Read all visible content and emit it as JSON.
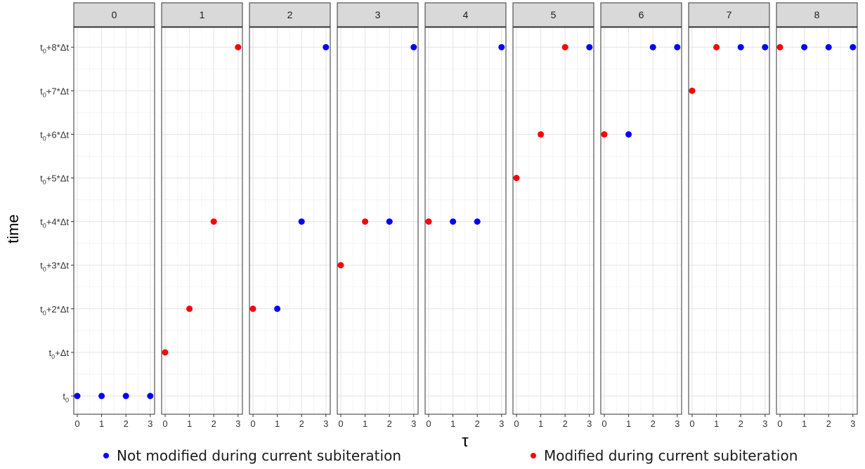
{
  "chart_data": {
    "type": "scatter",
    "xlabel": "τ",
    "ylabel": "time",
    "x_ticks": [
      0,
      1,
      2,
      3
    ],
    "xlim": [
      0,
      3
    ],
    "y_ticks": [
      {
        "value": 0,
        "base": "t",
        "sub": "0",
        "suffix": ""
      },
      {
        "value": 1,
        "base": "t",
        "sub": "0",
        "suffix": "+Δt"
      },
      {
        "value": 2,
        "base": "t",
        "sub": "0",
        "suffix": "+2*Δt"
      },
      {
        "value": 3,
        "base": "t",
        "sub": "0",
        "suffix": "+3*Δt"
      },
      {
        "value": 4,
        "base": "t",
        "sub": "0",
        "suffix": "+4*Δt"
      },
      {
        "value": 5,
        "base": "t",
        "sub": "0",
        "suffix": "+5*Δt"
      },
      {
        "value": 6,
        "base": "t",
        "sub": "0",
        "suffix": "+6*Δt"
      },
      {
        "value": 7,
        "base": "t",
        "sub": "0",
        "suffix": "+7*Δt"
      },
      {
        "value": 8,
        "base": "t",
        "sub": "0",
        "suffix": "+8*Δt"
      }
    ],
    "ylim": [
      0,
      8
    ],
    "grid": true,
    "legend_position": "bottom",
    "series": [
      {
        "key": "not_modified",
        "name": "Not modified during current subiteration",
        "color": "#0000ff"
      },
      {
        "key": "modified",
        "name": "Modified during current subiteration",
        "color": "#ff0000"
      }
    ],
    "panels": [
      {
        "label": "0",
        "points": [
          {
            "x": 0,
            "y": 0,
            "s": "not_modified"
          },
          {
            "x": 1,
            "y": 0,
            "s": "not_modified"
          },
          {
            "x": 2,
            "y": 0,
            "s": "not_modified"
          },
          {
            "x": 3,
            "y": 0,
            "s": "not_modified"
          }
        ]
      },
      {
        "label": "1",
        "points": [
          {
            "x": 0,
            "y": 1,
            "s": "modified"
          },
          {
            "x": 1,
            "y": 2,
            "s": "modified"
          },
          {
            "x": 2,
            "y": 4,
            "s": "modified"
          },
          {
            "x": 3,
            "y": 8,
            "s": "modified"
          }
        ]
      },
      {
        "label": "2",
        "points": [
          {
            "x": 0,
            "y": 2,
            "s": "modified"
          },
          {
            "x": 1,
            "y": 2,
            "s": "not_modified"
          },
          {
            "x": 2,
            "y": 4,
            "s": "not_modified"
          },
          {
            "x": 3,
            "y": 8,
            "s": "not_modified"
          }
        ]
      },
      {
        "label": "3",
        "points": [
          {
            "x": 0,
            "y": 3,
            "s": "modified"
          },
          {
            "x": 1,
            "y": 4,
            "s": "modified"
          },
          {
            "x": 2,
            "y": 4,
            "s": "not_modified"
          },
          {
            "x": 3,
            "y": 8,
            "s": "not_modified"
          }
        ]
      },
      {
        "label": "4",
        "points": [
          {
            "x": 0,
            "y": 4,
            "s": "modified"
          },
          {
            "x": 1,
            "y": 4,
            "s": "not_modified"
          },
          {
            "x": 2,
            "y": 4,
            "s": "not_modified"
          },
          {
            "x": 3,
            "y": 8,
            "s": "not_modified"
          }
        ]
      },
      {
        "label": "5",
        "points": [
          {
            "x": 0,
            "y": 5,
            "s": "modified"
          },
          {
            "x": 1,
            "y": 6,
            "s": "modified"
          },
          {
            "x": 2,
            "y": 8,
            "s": "modified"
          },
          {
            "x": 3,
            "y": 8,
            "s": "not_modified"
          }
        ]
      },
      {
        "label": "6",
        "points": [
          {
            "x": 0,
            "y": 6,
            "s": "modified"
          },
          {
            "x": 1,
            "y": 6,
            "s": "not_modified"
          },
          {
            "x": 2,
            "y": 8,
            "s": "not_modified"
          },
          {
            "x": 3,
            "y": 8,
            "s": "not_modified"
          }
        ]
      },
      {
        "label": "7",
        "points": [
          {
            "x": 0,
            "y": 7,
            "s": "modified"
          },
          {
            "x": 1,
            "y": 8,
            "s": "modified"
          },
          {
            "x": 2,
            "y": 8,
            "s": "not_modified"
          },
          {
            "x": 3,
            "y": 8,
            "s": "not_modified"
          }
        ]
      },
      {
        "label": "8",
        "points": [
          {
            "x": 0,
            "y": 8,
            "s": "modified"
          },
          {
            "x": 1,
            "y": 8,
            "s": "not_modified"
          },
          {
            "x": 2,
            "y": 8,
            "s": "not_modified"
          },
          {
            "x": 3,
            "y": 8,
            "s": "not_modified"
          }
        ]
      }
    ]
  }
}
